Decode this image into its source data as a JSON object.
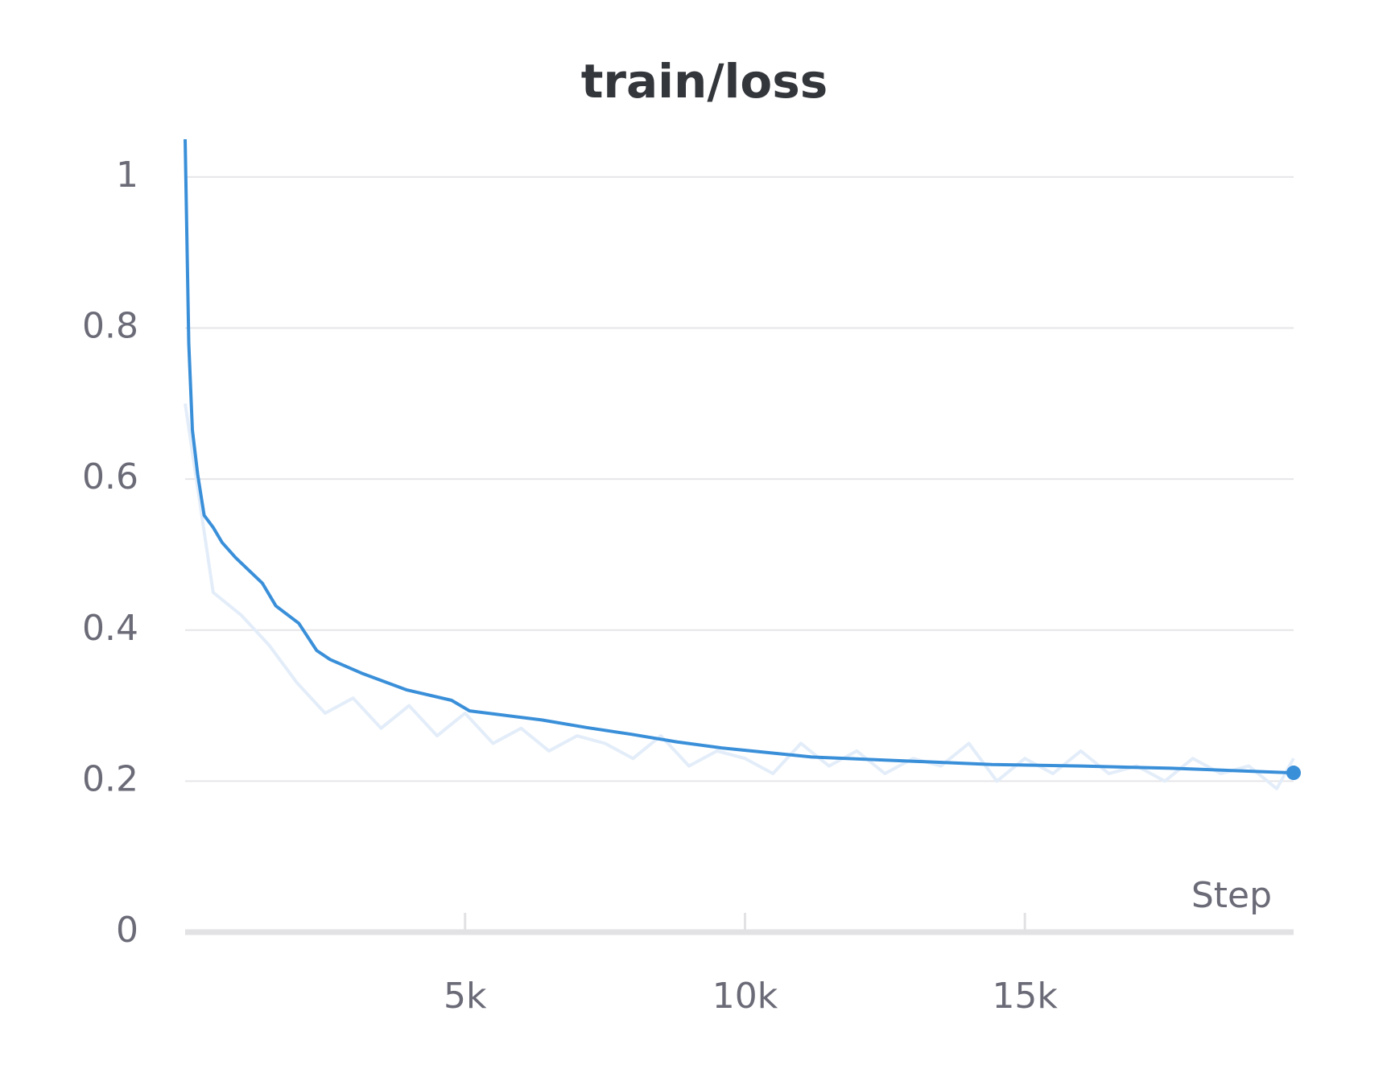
{
  "chart_data": {
    "type": "line",
    "title": "train/loss",
    "x_label": "Step",
    "xlim": [
      0,
      19800
    ],
    "ylim": [
      0,
      1.05
    ],
    "xticks": [
      {
        "value": 5000,
        "label": "5k"
      },
      {
        "value": 10000,
        "label": "10k"
      },
      {
        "value": 15000,
        "label": "15k"
      }
    ],
    "yticks": [
      0,
      0.2,
      0.4,
      0.6,
      0.8,
      1
    ],
    "grid": true,
    "series": [
      {
        "color": "#e3edf9",
        "x": [
          0,
          500,
          1000,
          1500,
          2000,
          2500,
          3000,
          3500,
          4000,
          4500,
          5000,
          5500,
          6000,
          6500,
          7000,
          7500,
          8000,
          8500,
          9000,
          9500,
          10000,
          10500,
          11000,
          11500,
          12000,
          12500,
          13000,
          13500,
          14000,
          14500,
          15000,
          15500,
          16000,
          16500,
          17000,
          17500,
          18000,
          18500,
          19000,
          19500,
          19800
        ],
        "values": [
          0.7,
          0.45,
          0.42,
          0.38,
          0.33,
          0.29,
          0.31,
          0.27,
          0.3,
          0.26,
          0.29,
          0.25,
          0.27,
          0.24,
          0.26,
          0.25,
          0.23,
          0.26,
          0.22,
          0.24,
          0.23,
          0.21,
          0.25,
          0.22,
          0.24,
          0.21,
          0.23,
          0.22,
          0.25,
          0.2,
          0.23,
          0.21,
          0.24,
          0.21,
          0.22,
          0.2,
          0.23,
          0.21,
          0.22,
          0.19,
          0.23
        ]
      },
      {
        "color": "#3a8fd9",
        "end_marker": true,
        "x": [
          0,
          64,
          130,
          225,
          340,
          500,
          660,
          900,
          1380,
          1620,
          2030,
          2350,
          2590,
          3150,
          3950,
          4760,
          5080,
          6370,
          7170,
          7970,
          8780,
          9580,
          11190,
          12800,
          14410,
          16010,
          17620,
          19800
        ],
        "values": [
          1.05,
          0.78,
          0.665,
          0.606,
          0.552,
          0.536,
          0.516,
          0.496,
          0.462,
          0.432,
          0.409,
          0.373,
          0.361,
          0.343,
          0.321,
          0.307,
          0.293,
          0.281,
          0.271,
          0.262,
          0.252,
          0.244,
          0.232,
          0.227,
          0.222,
          0.22,
          0.217,
          0.211
        ]
      }
    ]
  }
}
